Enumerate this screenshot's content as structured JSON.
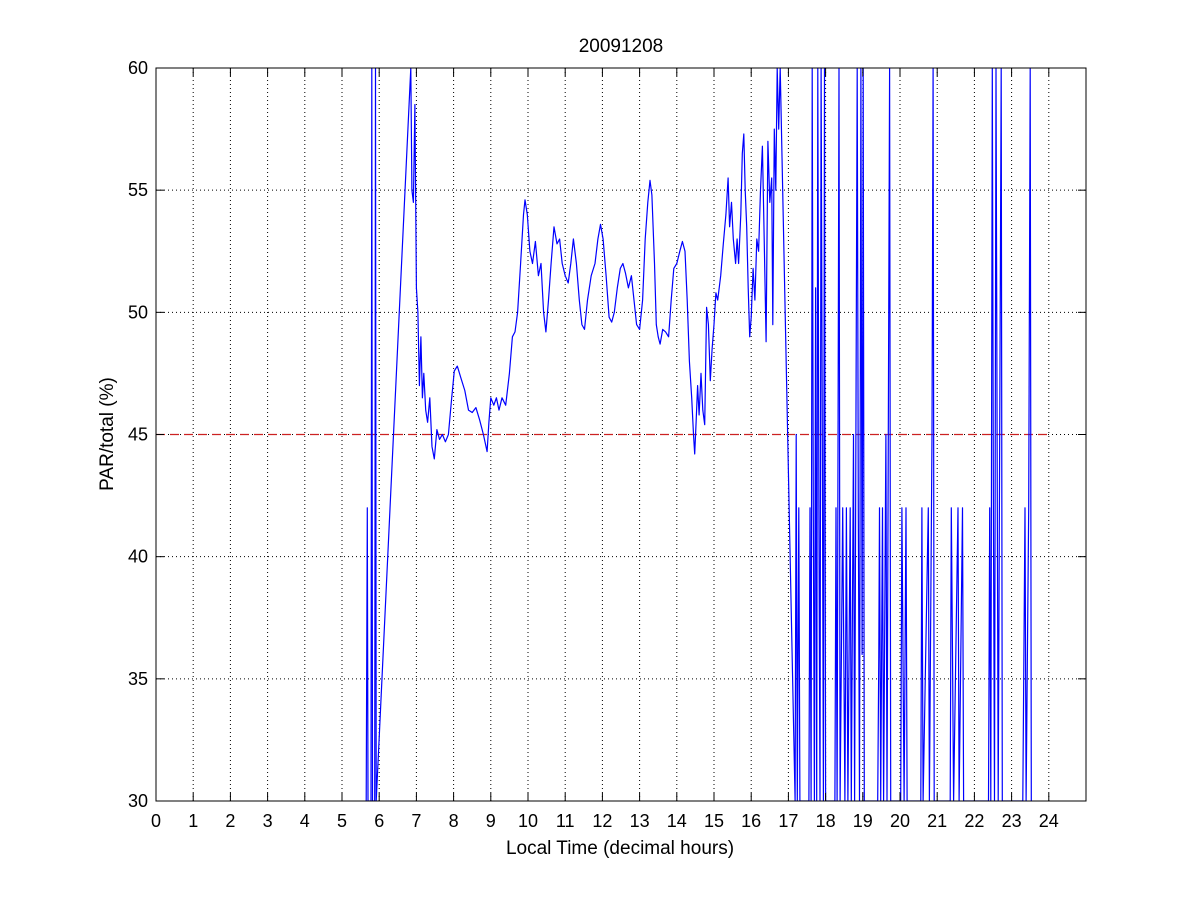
{
  "chart_data": {
    "type": "line",
    "title": "20091208",
    "xlabel": "Local Time (decimal hours)",
    "ylabel": "PAR/total (%)",
    "xlim": [
      0,
      25
    ],
    "ylim": [
      30,
      60
    ],
    "xticks": [
      0,
      1,
      2,
      3,
      4,
      5,
      6,
      7,
      8,
      9,
      10,
      11,
      12,
      13,
      14,
      15,
      16,
      17,
      18,
      19,
      20,
      21,
      22,
      23,
      24
    ],
    "yticks": [
      30,
      35,
      40,
      45,
      50,
      55,
      60
    ],
    "grid": true,
    "grid_style": "dotted",
    "series": [
      {
        "color": "#0000ff",
        "style": "solid",
        "points": [
          [
            5.65,
            30
          ],
          [
            5.68,
            42
          ],
          [
            5.7,
            30
          ],
          [
            5.78,
            30
          ],
          [
            5.8,
            60
          ],
          [
            5.82,
            30
          ],
          [
            5.88,
            30
          ],
          [
            5.9,
            60
          ],
          [
            5.92,
            30
          ],
          [
            6.85,
            60
          ],
          [
            6.88,
            55.0
          ],
          [
            6.92,
            54.5
          ],
          [
            6.96,
            58.5
          ],
          [
            7.0,
            51.0
          ],
          [
            7.04,
            50.0
          ],
          [
            7.08,
            47.0
          ],
          [
            7.12,
            49.0
          ],
          [
            7.16,
            46.5
          ],
          [
            7.2,
            47.5
          ],
          [
            7.25,
            46.0
          ],
          [
            7.3,
            45.5
          ],
          [
            7.36,
            46.5
          ],
          [
            7.42,
            44.5
          ],
          [
            7.48,
            44.0
          ],
          [
            7.55,
            45.2
          ],
          [
            7.62,
            44.8
          ],
          [
            7.7,
            45.0
          ],
          [
            7.78,
            44.7
          ],
          [
            7.86,
            45.0
          ],
          [
            7.95,
            46.5
          ],
          [
            8.02,
            47.6
          ],
          [
            8.1,
            47.8
          ],
          [
            8.2,
            47.3
          ],
          [
            8.3,
            46.8
          ],
          [
            8.4,
            46.0
          ],
          [
            8.5,
            45.9
          ],
          [
            8.6,
            46.1
          ],
          [
            8.7,
            45.6
          ],
          [
            8.8,
            45.0
          ],
          [
            8.9,
            44.3
          ],
          [
            8.95,
            45.5
          ],
          [
            9.0,
            46.5
          ],
          [
            9.08,
            46.2
          ],
          [
            9.15,
            46.5
          ],
          [
            9.22,
            46.0
          ],
          [
            9.3,
            46.5
          ],
          [
            9.4,
            46.2
          ],
          [
            9.5,
            47.5
          ],
          [
            9.58,
            49.0
          ],
          [
            9.65,
            49.2
          ],
          [
            9.72,
            50.0
          ],
          [
            9.8,
            52.0
          ],
          [
            9.88,
            54.0
          ],
          [
            9.92,
            54.6
          ],
          [
            9.98,
            54.0
          ],
          [
            10.05,
            52.5
          ],
          [
            10.12,
            52.0
          ],
          [
            10.2,
            52.9
          ],
          [
            10.28,
            51.5
          ],
          [
            10.35,
            52.0
          ],
          [
            10.42,
            50.0
          ],
          [
            10.48,
            49.2
          ],
          [
            10.55,
            50.5
          ],
          [
            10.62,
            52.0
          ],
          [
            10.7,
            53.5
          ],
          [
            10.78,
            52.8
          ],
          [
            10.85,
            53.0
          ],
          [
            10.92,
            52.0
          ],
          [
            11.0,
            51.5
          ],
          [
            11.08,
            51.2
          ],
          [
            11.15,
            52.0
          ],
          [
            11.22,
            53.0
          ],
          [
            11.3,
            52.0
          ],
          [
            11.38,
            50.5
          ],
          [
            11.45,
            49.5
          ],
          [
            11.52,
            49.3
          ],
          [
            11.6,
            50.5
          ],
          [
            11.7,
            51.5
          ],
          [
            11.8,
            52.0
          ],
          [
            11.88,
            53.0
          ],
          [
            11.95,
            53.6
          ],
          [
            12.02,
            53.0
          ],
          [
            12.1,
            51.5
          ],
          [
            12.18,
            49.8
          ],
          [
            12.25,
            49.6
          ],
          [
            12.32,
            50.0
          ],
          [
            12.4,
            51.0
          ],
          [
            12.48,
            51.8
          ],
          [
            12.55,
            52.0
          ],
          [
            12.62,
            51.6
          ],
          [
            12.7,
            51.0
          ],
          [
            12.78,
            51.5
          ],
          [
            12.85,
            50.5
          ],
          [
            12.92,
            49.5
          ],
          [
            13.0,
            49.3
          ],
          [
            13.08,
            50.5
          ],
          [
            13.15,
            53.0
          ],
          [
            13.22,
            54.5
          ],
          [
            13.28,
            55.4
          ],
          [
            13.33,
            54.8
          ],
          [
            13.4,
            52.0
          ],
          [
            13.45,
            49.5
          ],
          [
            13.5,
            49.0
          ],
          [
            13.55,
            48.7
          ],
          [
            13.62,
            49.3
          ],
          [
            13.7,
            49.2
          ],
          [
            13.78,
            49.0
          ],
          [
            13.85,
            50.5
          ],
          [
            13.92,
            51.8
          ],
          [
            14.0,
            52.0
          ],
          [
            14.08,
            52.5
          ],
          [
            14.15,
            52.9
          ],
          [
            14.22,
            52.5
          ],
          [
            14.28,
            50.5
          ],
          [
            14.34,
            48.0
          ],
          [
            14.4,
            46.5
          ],
          [
            14.45,
            45.0
          ],
          [
            14.48,
            44.2
          ],
          [
            14.52,
            45.5
          ],
          [
            14.56,
            47.0
          ],
          [
            14.6,
            45.8
          ],
          [
            14.65,
            47.5
          ],
          [
            14.7,
            46.0
          ],
          [
            14.75,
            45.4
          ],
          [
            14.8,
            50.2
          ],
          [
            14.85,
            49.5
          ],
          [
            14.9,
            47.2
          ],
          [
            14.95,
            48.5
          ],
          [
            15.0,
            49.5
          ],
          [
            15.05,
            50.8
          ],
          [
            15.1,
            50.5
          ],
          [
            15.18,
            51.5
          ],
          [
            15.25,
            52.8
          ],
          [
            15.32,
            54.0
          ],
          [
            15.38,
            55.5
          ],
          [
            15.42,
            53.5
          ],
          [
            15.47,
            54.5
          ],
          [
            15.52,
            53.0
          ],
          [
            15.58,
            52.0
          ],
          [
            15.62,
            53.0
          ],
          [
            15.66,
            52.0
          ],
          [
            15.72,
            54.0
          ],
          [
            15.76,
            56.5
          ],
          [
            15.8,
            57.3
          ],
          [
            15.84,
            55.0
          ],
          [
            15.88,
            53.5
          ],
          [
            15.92,
            51.0
          ],
          [
            15.96,
            49.0
          ],
          [
            16.0,
            49.8
          ],
          [
            16.05,
            51.8
          ],
          [
            16.1,
            50.5
          ],
          [
            16.15,
            53.0
          ],
          [
            16.2,
            52.5
          ],
          [
            16.25,
            55.0
          ],
          [
            16.3,
            56.8
          ],
          [
            16.35,
            53.0
          ],
          [
            16.4,
            48.8
          ],
          [
            16.45,
            57.0
          ],
          [
            16.5,
            54.5
          ],
          [
            16.55,
            55.5
          ],
          [
            16.58,
            49.5
          ],
          [
            16.62,
            57.5
          ],
          [
            16.66,
            55.0
          ],
          [
            16.7,
            60.0
          ],
          [
            16.74,
            57.5
          ],
          [
            16.78,
            60.0
          ],
          [
            17.18,
            30
          ],
          [
            17.21,
            45
          ],
          [
            17.24,
            30
          ],
          [
            17.28,
            42
          ],
          [
            17.31,
            30
          ],
          [
            17.55,
            30
          ],
          [
            17.58,
            42
          ],
          [
            17.61,
            30
          ],
          [
            17.64,
            60
          ],
          [
            17.67,
            42
          ],
          [
            17.7,
            30
          ],
          [
            17.73,
            51
          ],
          [
            17.76,
            30
          ],
          [
            17.79,
            60
          ],
          [
            17.82,
            42
          ],
          [
            17.85,
            30
          ],
          [
            17.88,
            60
          ],
          [
            17.91,
            45
          ],
          [
            17.94,
            30
          ],
          [
            17.97,
            60
          ],
          [
            18.0,
            30
          ],
          [
            18.25,
            30
          ],
          [
            18.28,
            42
          ],
          [
            18.31,
            30
          ],
          [
            18.36,
            60
          ],
          [
            18.39,
            30
          ],
          [
            18.46,
            42
          ],
          [
            18.49,
            36
          ],
          [
            18.52,
            30
          ],
          [
            18.56,
            42
          ],
          [
            18.6,
            30
          ],
          [
            18.66,
            42
          ],
          [
            18.69,
            30
          ],
          [
            18.75,
            45
          ],
          [
            18.78,
            30
          ],
          [
            18.85,
            60
          ],
          [
            18.88,
            42
          ],
          [
            18.91,
            30
          ],
          [
            18.95,
            60
          ],
          [
            18.98,
            36
          ],
          [
            19.01,
            60
          ],
          [
            19.04,
            30
          ],
          [
            19.4,
            30
          ],
          [
            19.43,
            36
          ],
          [
            19.45,
            42
          ],
          [
            19.48,
            30
          ],
          [
            19.53,
            42
          ],
          [
            19.56,
            30
          ],
          [
            19.62,
            45
          ],
          [
            19.65,
            30
          ],
          [
            19.72,
            60
          ],
          [
            19.75,
            30
          ],
          [
            20.02,
            30
          ],
          [
            20.05,
            42
          ],
          [
            20.08,
            36
          ],
          [
            20.11,
            30
          ],
          [
            20.16,
            42
          ],
          [
            20.19,
            30
          ],
          [
            20.56,
            30
          ],
          [
            20.59,
            42
          ],
          [
            20.62,
            30
          ],
          [
            20.76,
            42
          ],
          [
            20.79,
            30
          ],
          [
            20.86,
            45
          ],
          [
            20.89,
            60
          ],
          [
            20.92,
            30
          ],
          [
            21.35,
            30
          ],
          [
            21.38,
            42
          ],
          [
            21.41,
            36
          ],
          [
            21.44,
            30
          ],
          [
            21.56,
            42
          ],
          [
            21.59,
            30
          ],
          [
            21.68,
            42
          ],
          [
            21.71,
            30
          ],
          [
            22.38,
            30
          ],
          [
            22.41,
            42
          ],
          [
            22.44,
            30
          ],
          [
            22.48,
            60
          ],
          [
            22.51,
            42
          ],
          [
            22.54,
            30
          ],
          [
            22.58,
            60
          ],
          [
            22.61,
            45
          ],
          [
            22.64,
            30
          ],
          [
            22.72,
            60
          ],
          [
            22.75,
            30
          ],
          [
            23.3,
            30
          ],
          [
            23.33,
            36
          ],
          [
            23.36,
            42
          ],
          [
            23.39,
            30
          ],
          [
            23.46,
            42
          ],
          [
            23.5,
            60
          ],
          [
            23.53,
            30
          ]
        ]
      },
      {
        "color": "#cc2222",
        "style": "dashed",
        "points": [
          [
            0,
            45
          ],
          [
            24,
            45
          ]
        ]
      }
    ]
  }
}
